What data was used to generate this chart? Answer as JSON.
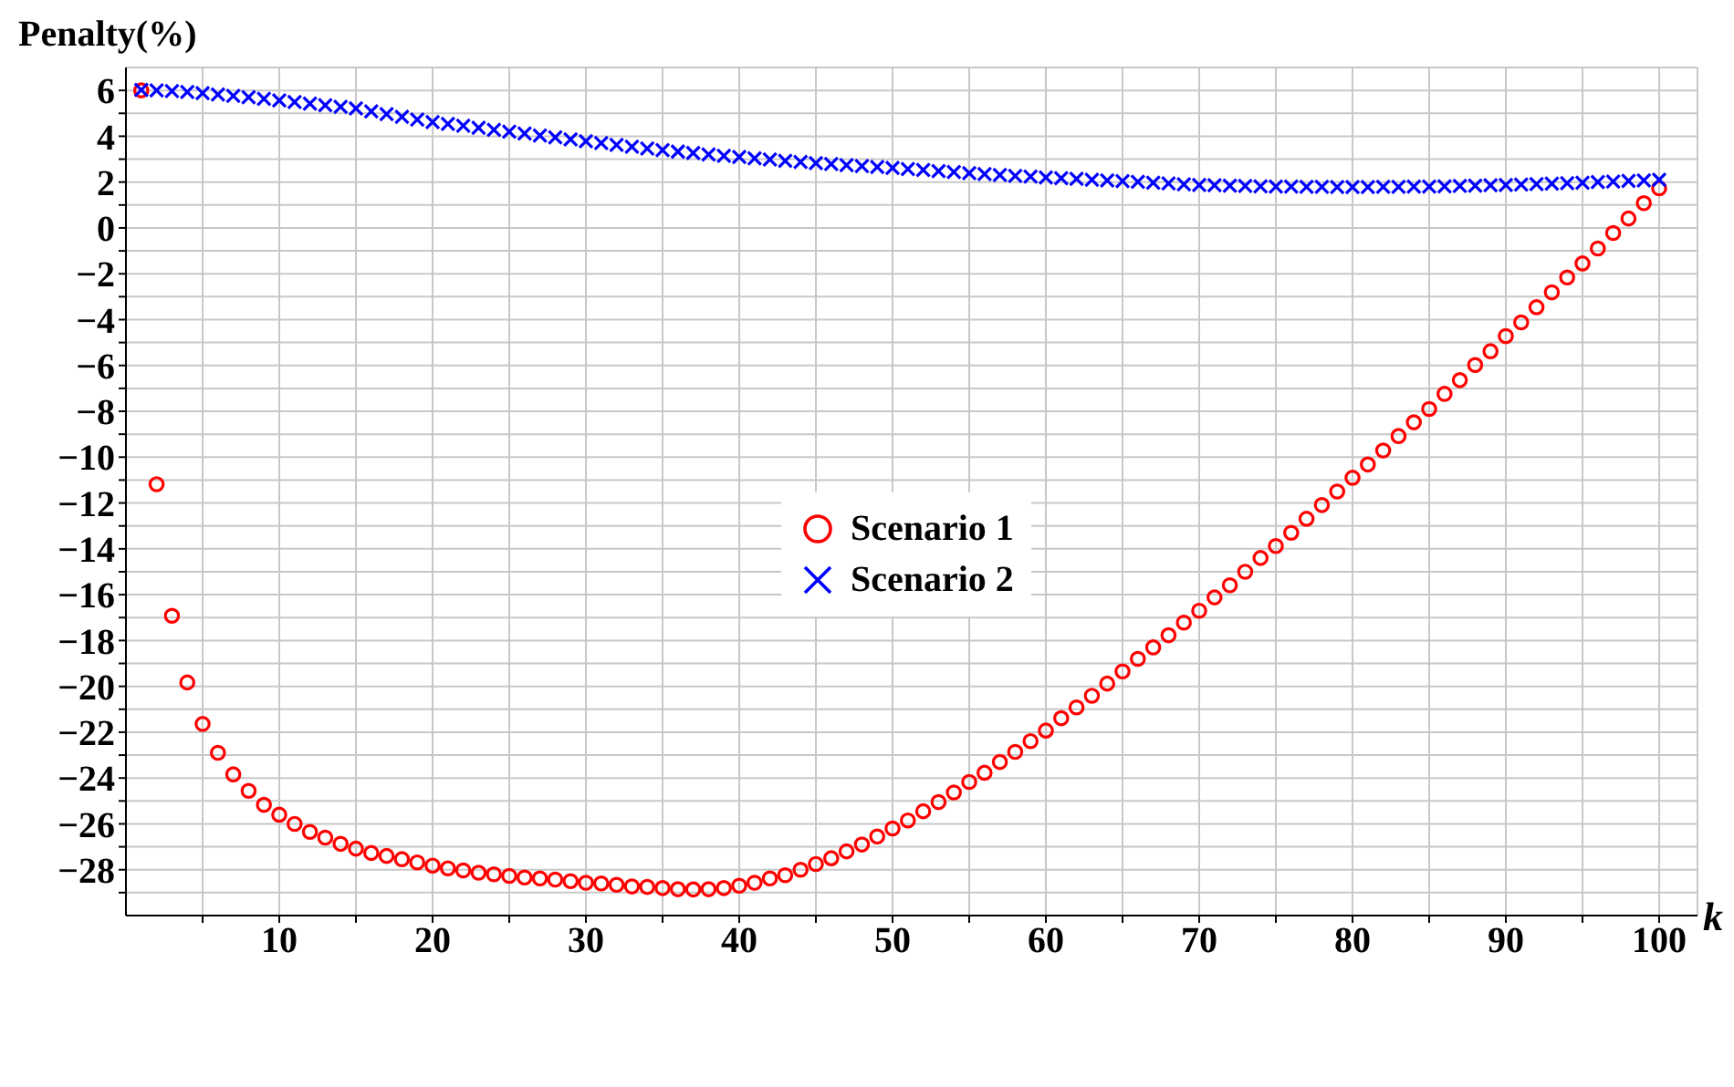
{
  "chart_data": {
    "type": "scatter",
    "ylabel": "Penalty(%)",
    "xlabel": "k",
    "x": [
      1,
      2,
      3,
      4,
      5,
      6,
      7,
      8,
      9,
      10,
      11,
      12,
      13,
      14,
      15,
      16,
      17,
      18,
      19,
      20,
      21,
      22,
      23,
      24,
      25,
      26,
      27,
      28,
      29,
      30,
      31,
      32,
      33,
      34,
      35,
      36,
      37,
      38,
      39,
      40,
      41,
      42,
      43,
      44,
      45,
      46,
      47,
      48,
      49,
      50,
      51,
      52,
      53,
      54,
      55,
      56,
      57,
      58,
      59,
      60,
      61,
      62,
      63,
      64,
      65,
      66,
      67,
      68,
      69,
      70,
      71,
      72,
      73,
      74,
      75,
      76,
      77,
      78,
      79,
      80,
      81,
      82,
      83,
      84,
      85,
      86,
      87,
      88,
      89,
      90,
      91,
      92,
      93,
      94,
      95,
      96,
      97,
      98,
      99,
      100
    ],
    "series": [
      {
        "name": "Scenario 1",
        "color": "#ff0000",
        "marker": "circle",
        "values": [
          6.0,
          -11.18,
          -16.92,
          -19.83,
          -21.64,
          -22.9,
          -23.84,
          -24.56,
          -25.17,
          -25.6,
          -26.0,
          -26.35,
          -26.6,
          -26.87,
          -27.08,
          -27.27,
          -27.4,
          -27.54,
          -27.68,
          -27.82,
          -27.94,
          -28.03,
          -28.13,
          -28.2,
          -28.27,
          -28.34,
          -28.38,
          -28.43,
          -28.5,
          -28.57,
          -28.6,
          -28.66,
          -28.73,
          -28.75,
          -28.8,
          -28.85,
          -28.86,
          -28.85,
          -28.8,
          -28.7,
          -28.57,
          -28.38,
          -28.24,
          -28.0,
          -27.75,
          -27.5,
          -27.2,
          -26.9,
          -26.55,
          -26.2,
          -25.85,
          -25.45,
          -25.05,
          -24.63,
          -24.17,
          -23.77,
          -23.3,
          -22.86,
          -22.39,
          -21.93,
          -21.39,
          -20.92,
          -20.41,
          -19.88,
          -19.35,
          -18.8,
          -18.3,
          -17.77,
          -17.22,
          -16.7,
          -16.12,
          -15.59,
          -15.0,
          -14.4,
          -13.88,
          -13.3,
          -12.69,
          -12.09,
          -11.5,
          -10.9,
          -10.32,
          -9.71,
          -9.08,
          -8.48,
          -7.9,
          -7.24,
          -6.64,
          -5.98,
          -5.38,
          -4.72,
          -4.12,
          -3.46,
          -2.81,
          -2.16,
          -1.55,
          -0.9,
          -0.22,
          0.41,
          1.08,
          1.73
        ]
      },
      {
        "name": "Scenario 2",
        "color": "#0000ff",
        "marker": "cross",
        "values": [
          6.02,
          6.0,
          5.97,
          5.93,
          5.88,
          5.82,
          5.76,
          5.7,
          5.63,
          5.56,
          5.49,
          5.42,
          5.35,
          5.28,
          5.21,
          5.09,
          4.97,
          4.85,
          4.73,
          4.62,
          4.54,
          4.46,
          4.37,
          4.28,
          4.2,
          4.12,
          4.03,
          3.95,
          3.86,
          3.78,
          3.7,
          3.62,
          3.54,
          3.46,
          3.39,
          3.33,
          3.27,
          3.21,
          3.15,
          3.1,
          3.04,
          2.99,
          2.93,
          2.88,
          2.83,
          2.79,
          2.74,
          2.7,
          2.66,
          2.62,
          2.57,
          2.53,
          2.48,
          2.44,
          2.39,
          2.35,
          2.31,
          2.27,
          2.24,
          2.2,
          2.17,
          2.14,
          2.1,
          2.07,
          2.04,
          2.01,
          1.97,
          1.94,
          1.9,
          1.87,
          1.86,
          1.84,
          1.83,
          1.81,
          1.8,
          1.8,
          1.79,
          1.79,
          1.78,
          1.78,
          1.78,
          1.79,
          1.79,
          1.8,
          1.8,
          1.81,
          1.83,
          1.84,
          1.86,
          1.87,
          1.89,
          1.91,
          1.93,
          1.95,
          1.97,
          2.0,
          2.02,
          2.05,
          2.07,
          2.1
        ]
      }
    ],
    "xlim": [
      0,
      102.5
    ],
    "xticks": [
      {
        "value": 5,
        "label": null
      },
      10,
      {
        "value": 15,
        "label": null
      },
      20,
      {
        "value": 25,
        "label": null
      },
      30,
      {
        "value": 35,
        "label": null
      },
      40,
      {
        "value": 45,
        "label": null
      },
      50,
      {
        "value": 55,
        "label": null
      },
      60,
      {
        "value": 65,
        "label": null
      },
      70,
      {
        "value": 75,
        "label": null
      },
      80,
      {
        "value": 85,
        "label": null
      },
      90,
      {
        "value": 95,
        "label": null
      },
      100
    ],
    "ylim": [
      -30,
      7
    ],
    "yticks": [
      {
        "value": -29,
        "label": null
      },
      -28,
      {
        "value": -27,
        "label": null
      },
      -26,
      {
        "value": -25,
        "label": null
      },
      -24,
      {
        "value": -23,
        "label": null
      },
      -22,
      {
        "value": -21,
        "label": null
      },
      -20,
      {
        "value": -19,
        "label": null
      },
      -18,
      {
        "value": -17,
        "label": null
      },
      -16,
      {
        "value": -15,
        "label": null
      },
      -14,
      {
        "value": -13,
        "label": null
      },
      -12,
      {
        "value": -11,
        "label": null
      },
      -10,
      {
        "value": -9,
        "label": null
      },
      -8,
      {
        "value": -7,
        "label": null
      },
      -6,
      {
        "value": -5,
        "label": null
      },
      -4,
      {
        "value": -3,
        "label": null
      },
      -2,
      {
        "value": -1,
        "label": null
      },
      0,
      {
        "value": 1,
        "label": null
      },
      2,
      {
        "value": 3,
        "label": null
      },
      4,
      {
        "value": 5,
        "label": null
      },
      6
    ],
    "grid": true,
    "legend": "center"
  }
}
